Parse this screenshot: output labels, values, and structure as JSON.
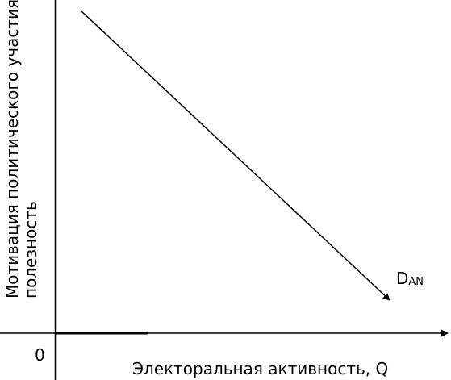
{
  "diagram": {
    "type": "line",
    "origin_label": "0",
    "x_axis_label": "Электоральная  активность, Q",
    "y_axis_label_line1": "Мотивация политического участия",
    "y_axis_label_line2": "полезность",
    "curve": {
      "label_main": "D",
      "label_sub": "AN",
      "direction": "downward-sloping"
    },
    "colors": {
      "stroke": "#000000",
      "background": "#ffffff"
    }
  }
}
